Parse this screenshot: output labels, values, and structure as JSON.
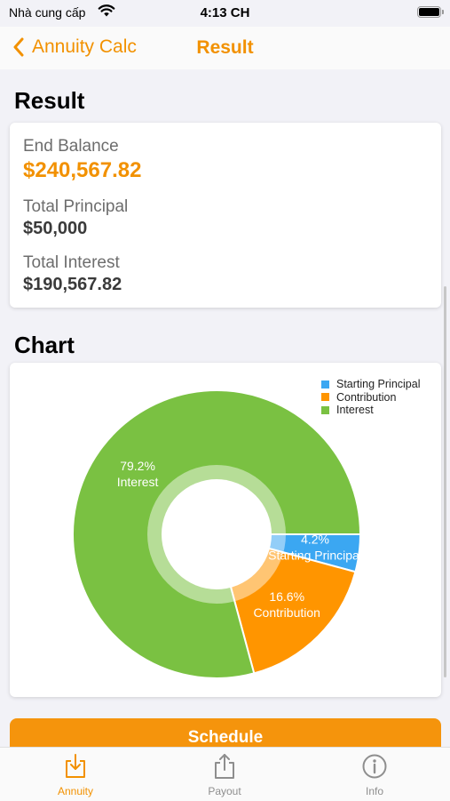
{
  "status_bar": {
    "carrier": "Nhà cung cấp",
    "time": "4:13 CH"
  },
  "nav": {
    "back_label": "Annuity Calc",
    "title": "Result"
  },
  "result": {
    "section_title": "Result",
    "end_balance_label": "End Balance",
    "end_balance_value": "$240,567.82",
    "total_principal_label": "Total Principal",
    "total_principal_value": "$50,000",
    "total_interest_label": "Total Interest",
    "total_interest_value": "$190,567.82"
  },
  "chart_section": {
    "title": "Chart"
  },
  "chart_data": {
    "type": "pie",
    "categories": [
      "Starting Principal",
      "Contribution",
      "Interest"
    ],
    "values": [
      4.2,
      16.6,
      79.2
    ],
    "value_labels": [
      "4.2%",
      "16.6%",
      "79.2%"
    ],
    "colors": [
      "#3ba7f2",
      "#ff9500",
      "#7ac142"
    ],
    "legend": "top-right",
    "donut_hole": true
  },
  "schedule_button": "Schedule",
  "tabs": [
    {
      "label": "Annuity",
      "icon": "download-tray-icon",
      "active": true
    },
    {
      "label": "Payout",
      "icon": "share-upload-icon",
      "active": false
    },
    {
      "label": "Info",
      "icon": "info-circle-icon",
      "active": false
    }
  ],
  "colors": {
    "accent": "#f29100",
    "background": "#f2f2f7"
  }
}
